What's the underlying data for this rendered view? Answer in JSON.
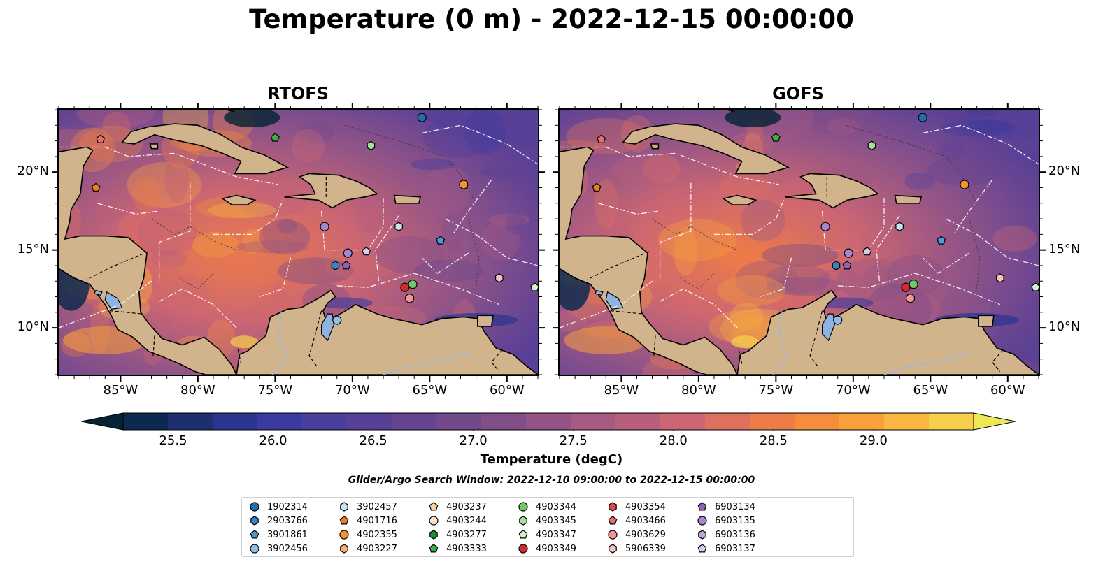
{
  "title": "Temperature (0 m) - 2022-12-15 00:00:00",
  "panels": [
    {
      "title": "RTOFS"
    },
    {
      "title": "GOFS"
    }
  ],
  "lon_ticks": [
    "85°W",
    "80°W",
    "75°W",
    "70°W",
    "65°W",
    "60°W"
  ],
  "lat_ticks": [
    "20°N",
    "15°N",
    "10°N"
  ],
  "colorbar": {
    "label": "Temperature (degC)",
    "ticks": [
      "25.5",
      "26.0",
      "26.5",
      "27.0",
      "27.5",
      "28.0",
      "28.5",
      "29.0"
    ],
    "range": [
      25.25,
      29.5
    ],
    "extend": "both",
    "colors": [
      "#042333",
      "#0c2a50",
      "#1d2f71",
      "#2a3590",
      "#3b3a9f",
      "#4a3f9d",
      "#583f97",
      "#654490",
      "#73498c",
      "#824e89",
      "#945586",
      "#a65a84",
      "#b95f7e",
      "#cc6672",
      "#df6f5f",
      "#ee7c47",
      "#f68d3c",
      "#f9a03b",
      "#f9b741",
      "#f7d04b",
      "#eee856"
    ]
  },
  "search_window": "Glider/Argo Search Window: 2022-12-10 09:00:00 to 2022-12-15 00:00:00",
  "legend": [
    {
      "id": "1902314",
      "marker": "circle",
      "color": "#1f6fb0"
    },
    {
      "id": "2903766",
      "marker": "hexagon",
      "color": "#3a84c6"
    },
    {
      "id": "3901861",
      "marker": "pentagon",
      "color": "#4a9ad6"
    },
    {
      "id": "3902456",
      "marker": "circle",
      "color": "#8fbfe8"
    },
    {
      "id": "3902457",
      "marker": "hexagon",
      "color": "#c8e2f6"
    },
    {
      "id": "4901716",
      "marker": "pentagon",
      "color": "#f07f1b"
    },
    {
      "id": "4902355",
      "marker": "circle",
      "color": "#f5932e"
    },
    {
      "id": "4903227",
      "marker": "hexagon",
      "color": "#f9b26e"
    },
    {
      "id": "4903237",
      "marker": "pentagon",
      "color": "#fbcf9c"
    },
    {
      "id": "4903244",
      "marker": "circle",
      "color": "#fde2c4"
    },
    {
      "id": "4903277",
      "marker": "hexagon",
      "color": "#1e8f2c"
    },
    {
      "id": "4903333",
      "marker": "pentagon",
      "color": "#39b043"
    },
    {
      "id": "4903344",
      "marker": "circle",
      "color": "#6cc86a"
    },
    {
      "id": "4903345",
      "marker": "hexagon",
      "color": "#a4df9c"
    },
    {
      "id": "4903347",
      "marker": "pentagon",
      "color": "#d3f2cb"
    },
    {
      "id": "4903349",
      "marker": "circle",
      "color": "#d12a2a"
    },
    {
      "id": "4903354",
      "marker": "hexagon",
      "color": "#e04848"
    },
    {
      "id": "4903466",
      "marker": "pentagon",
      "color": "#ea6b6b"
    },
    {
      "id": "4903629",
      "marker": "circle",
      "color": "#f29595"
    },
    {
      "id": "5906339",
      "marker": "hexagon",
      "color": "#f8c1c1"
    },
    {
      "id": "6903134",
      "marker": "pentagon",
      "color": "#8e63b8"
    },
    {
      "id": "6903135",
      "marker": "circle",
      "color": "#a585cc"
    },
    {
      "id": "6903136",
      "marker": "hexagon",
      "color": "#bfa4de"
    },
    {
      "id": "6903137",
      "marker": "pentagon",
      "color": "#dacbef"
    }
  ],
  "map_extent": {
    "lon": [
      -89,
      -58
    ],
    "lat": [
      7,
      24
    ]
  },
  "platforms": {
    "RTOFS": [
      {
        "id": "1902314",
        "lon": -65.5,
        "lat": 23.5
      },
      {
        "id": "4903333",
        "lon": -75.0,
        "lat": 22.2
      },
      {
        "id": "4903345",
        "lon": -68.8,
        "lat": 21.7
      },
      {
        "id": "4903466",
        "lon": -86.3,
        "lat": 22.1
      },
      {
        "id": "4901716",
        "lon": -86.6,
        "lat": 19.0
      },
      {
        "id": "4902355",
        "lon": -62.8,
        "lat": 19.2
      },
      {
        "id": "3902457",
        "lon": -67.0,
        "lat": 16.5
      },
      {
        "id": "6903135",
        "lon": -71.8,
        "lat": 16.5
      },
      {
        "id": "3901861",
        "lon": -64.3,
        "lat": 15.6
      },
      {
        "id": "6903137",
        "lon": -69.1,
        "lat": 14.9
      },
      {
        "id": "6903135",
        "lon": -70.3,
        "lat": 14.8
      },
      {
        "id": "2903766",
        "lon": -71.1,
        "lat": 14.0
      },
      {
        "id": "6903134",
        "lon": -70.4,
        "lat": 14.0
      },
      {
        "id": "5906339",
        "lon": -60.5,
        "lat": 13.2
      },
      {
        "id": "4903347",
        "lon": -58.2,
        "lat": 12.6
      },
      {
        "id": "4903344",
        "lon": -66.1,
        "lat": 12.8
      },
      {
        "id": "4903349",
        "lon": -66.6,
        "lat": 12.6
      },
      {
        "id": "4903629",
        "lon": -66.3,
        "lat": 11.9
      },
      {
        "id": "3902456",
        "lon": -71.0,
        "lat": 10.5
      }
    ],
    "GOFS": [
      {
        "id": "1902314",
        "lon": -65.5,
        "lat": 23.5
      },
      {
        "id": "4903333",
        "lon": -75.0,
        "lat": 22.2
      },
      {
        "id": "4903345",
        "lon": -68.8,
        "lat": 21.7
      },
      {
        "id": "4903466",
        "lon": -86.3,
        "lat": 22.1
      },
      {
        "id": "4901716",
        "lon": -86.6,
        "lat": 19.0
      },
      {
        "id": "4902355",
        "lon": -62.8,
        "lat": 19.2
      },
      {
        "id": "3902457",
        "lon": -67.0,
        "lat": 16.5
      },
      {
        "id": "6903135",
        "lon": -71.8,
        "lat": 16.5
      },
      {
        "id": "3901861",
        "lon": -64.3,
        "lat": 15.6
      },
      {
        "id": "6903137",
        "lon": -69.1,
        "lat": 14.9
      },
      {
        "id": "6903135",
        "lon": -70.3,
        "lat": 14.8
      },
      {
        "id": "2903766",
        "lon": -71.1,
        "lat": 14.0
      },
      {
        "id": "6903134",
        "lon": -70.4,
        "lat": 14.0
      },
      {
        "id": "5906339",
        "lon": -60.5,
        "lat": 13.2
      },
      {
        "id": "4903347",
        "lon": -58.2,
        "lat": 12.6
      },
      {
        "id": "4903344",
        "lon": -66.1,
        "lat": 12.8
      },
      {
        "id": "4903349",
        "lon": -66.6,
        "lat": 12.6
      },
      {
        "id": "4903629",
        "lon": -66.3,
        "lat": 11.9
      },
      {
        "id": "3902456",
        "lon": -71.0,
        "lat": 10.5
      }
    ]
  }
}
